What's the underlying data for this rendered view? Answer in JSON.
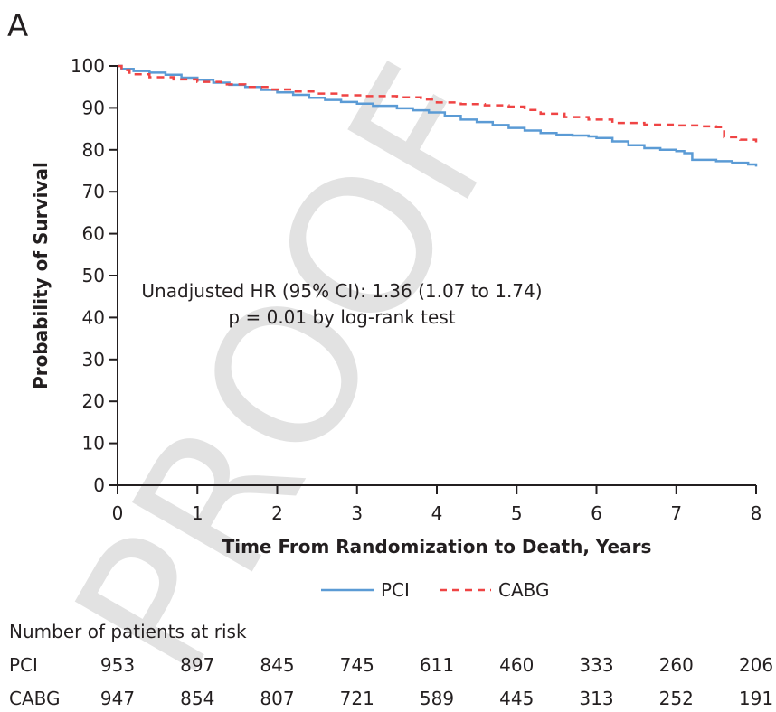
{
  "panel_label": "A",
  "annotation": {
    "line1": "Unadjusted HR (95% CI): 1.36 (1.07 to 1.74)",
    "line2": "p = 0.01 by log-rank test"
  },
  "risk_table": {
    "title": "Number of patients at risk",
    "rows": [
      {
        "label": "PCI",
        "values": [
          "953",
          "897",
          "845",
          "745",
          "611",
          "460",
          "333",
          "260",
          "206"
        ]
      },
      {
        "label": "CABG",
        "values": [
          "947",
          "854",
          "807",
          "721",
          "589",
          "445",
          "313",
          "252",
          "191"
        ]
      }
    ]
  },
  "watermark": "PROOF",
  "chart_data": {
    "type": "line",
    "xlabel": "Time From Randomization to Death, Years",
    "ylabel": "Probability of Survival",
    "xlim": [
      0,
      8
    ],
    "ylim": [
      0,
      100
    ],
    "xticks": [
      0,
      1,
      2,
      3,
      4,
      5,
      6,
      7,
      8
    ],
    "yticks": [
      0,
      10,
      20,
      30,
      40,
      50,
      60,
      70,
      80,
      90,
      100
    ],
    "grid": false,
    "legend_position": "bottom",
    "series": [
      {
        "name": "PCI",
        "color": "#5b9bd5",
        "style": "solid",
        "step": true,
        "x": [
          0,
          0.05,
          0.2,
          0.4,
          0.6,
          0.8,
          1.0,
          1.2,
          1.4,
          1.6,
          1.8,
          2.0,
          2.2,
          2.4,
          2.6,
          2.8,
          3.0,
          3.2,
          3.5,
          3.7,
          3.9,
          4.1,
          4.3,
          4.5,
          4.7,
          4.9,
          5.1,
          5.3,
          5.5,
          5.7,
          5.9,
          6.0,
          6.2,
          6.4,
          6.6,
          6.8,
          7.0,
          7.1,
          7.2,
          7.5,
          7.7,
          7.9,
          8.0
        ],
        "y": [
          100,
          99.3,
          98.8,
          98.4,
          97.9,
          97.2,
          96.7,
          96.0,
          95.5,
          95.0,
          94.3,
          93.7,
          93.1,
          92.4,
          91.9,
          91.4,
          91.0,
          90.5,
          89.9,
          89.4,
          88.9,
          88.1,
          87.2,
          86.6,
          85.9,
          85.2,
          84.6,
          84.0,
          83.6,
          83.4,
          83.2,
          82.8,
          82.0,
          81.1,
          80.4,
          80.0,
          79.7,
          79.2,
          77.6,
          77.3,
          76.9,
          76.5,
          76.0
        ]
      },
      {
        "name": "CABG",
        "color": "#ef4444",
        "style": "dashed",
        "step": true,
        "x": [
          0,
          0.05,
          0.15,
          0.4,
          0.7,
          1.0,
          1.3,
          1.6,
          1.9,
          2.2,
          2.5,
          2.8,
          3.1,
          3.5,
          3.8,
          4.0,
          4.3,
          4.6,
          4.9,
          5.1,
          5.3,
          5.6,
          5.9,
          6.2,
          6.6,
          7.0,
          7.3,
          7.5,
          7.6,
          7.8,
          8.0
        ],
        "y": [
          100,
          99.0,
          98.0,
          97.3,
          96.8,
          96.2,
          95.6,
          95.0,
          94.4,
          93.9,
          93.4,
          93.0,
          92.8,
          92.5,
          92.0,
          91.3,
          90.9,
          90.6,
          90.3,
          89.5,
          88.6,
          87.8,
          87.2,
          86.4,
          86.0,
          85.8,
          85.6,
          85.4,
          83.0,
          82.4,
          81.8
        ]
      }
    ]
  }
}
